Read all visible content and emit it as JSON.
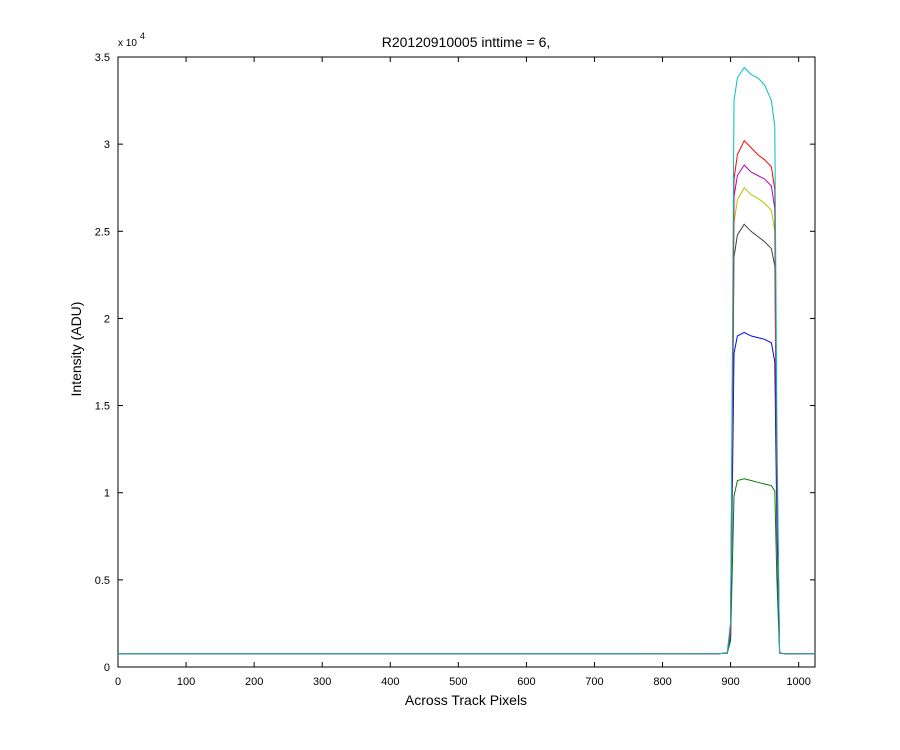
{
  "chart_data": {
    "type": "line",
    "title": "R20120910005 inttime = 6,",
    "xlabel": "Across Track Pixels",
    "ylabel": "Intensity (ADU)",
    "y_exponent_label": "x 10",
    "y_exponent_power": "4",
    "xlim": [
      0,
      1024
    ],
    "ylim": [
      0,
      35000
    ],
    "x_ticks": [
      0,
      100,
      200,
      300,
      400,
      500,
      600,
      700,
      800,
      900,
      1000
    ],
    "x_tick_labels": [
      "0",
      "100",
      "200",
      "300",
      "400",
      "500",
      "600",
      "700",
      "800",
      "900",
      "1000"
    ],
    "y_ticks": [
      0,
      5000,
      10000,
      15000,
      20000,
      25000,
      30000,
      35000
    ],
    "y_tick_labels": [
      "0",
      "0.5",
      "1",
      "1.5",
      "2",
      "2.5",
      "3",
      "3.5"
    ],
    "grid": false,
    "x": [
      0,
      880,
      895,
      900,
      905,
      910,
      920,
      930,
      940,
      950,
      960,
      965,
      968,
      972,
      980,
      1024
    ],
    "series": [
      {
        "color": "#008000",
        "values": [
          750,
          760,
          800,
          1500,
          9800,
          10700,
          10800,
          10700,
          10600,
          10500,
          10400,
          10100,
          5000,
          800,
          760,
          750
        ]
      },
      {
        "color": "#0000ff",
        "values": [
          750,
          760,
          800,
          1800,
          18000,
          19000,
          19200,
          19000,
          18900,
          18800,
          18600,
          17500,
          8000,
          800,
          760,
          750
        ]
      },
      {
        "color": "#404040",
        "values": [
          750,
          760,
          800,
          2000,
          23500,
          24800,
          25400,
          25000,
          24700,
          24400,
          24000,
          23000,
          10000,
          800,
          760,
          750
        ]
      },
      {
        "color": "#bfbf00",
        "values": [
          750,
          760,
          800,
          2100,
          25500,
          26800,
          27500,
          27100,
          26900,
          26600,
          26200,
          25000,
          11000,
          800,
          760,
          750
        ]
      },
      {
        "color": "#bf00bf",
        "values": [
          750,
          760,
          800,
          2200,
          27000,
          28200,
          28800,
          28400,
          28200,
          28000,
          27600,
          26300,
          11500,
          800,
          760,
          750
        ]
      },
      {
        "color": "#ff0000",
        "values": [
          750,
          760,
          800,
          2300,
          28000,
          29400,
          30200,
          29800,
          29400,
          29100,
          28700,
          27400,
          12000,
          800,
          760,
          750
        ]
      },
      {
        "color": "#00bfbf",
        "values": [
          750,
          760,
          800,
          2600,
          32500,
          33800,
          34400,
          34000,
          33800,
          33400,
          32500,
          31000,
          14000,
          800,
          760,
          750
        ]
      }
    ]
  }
}
